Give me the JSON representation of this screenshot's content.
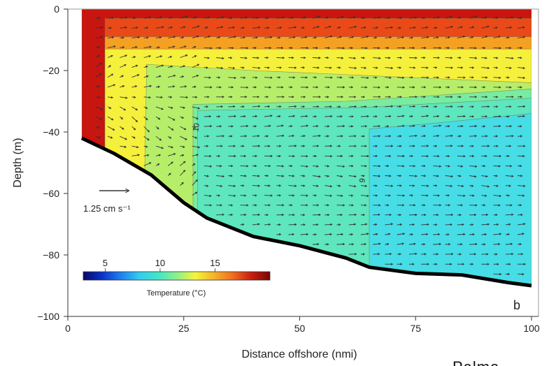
{
  "chart_data": {
    "type": "heatmap",
    "subtype": "cross-section temperature contours with velocity vectors",
    "xlabel": "Distance offshore (nmi)",
    "ylabel": "Depth (m)",
    "xlim": [
      0,
      100
    ],
    "ylim": [
      -100,
      0
    ],
    "x_ticks": [
      0,
      25,
      50,
      75,
      100
    ],
    "y_ticks": [
      0,
      -20,
      -40,
      -60,
      -80,
      -100
    ],
    "x_tick_labels": [
      "0",
      "25",
      "50",
      "75",
      "100"
    ],
    "y_tick_labels": [
      "0",
      "−20",
      "−40",
      "−60",
      "−80",
      "−100"
    ],
    "panel_label": "b",
    "vector_scale_label": "1.25 cm s⁻¹",
    "colorbar": {
      "label": "Temperature (°C)",
      "range": [
        3,
        20
      ],
      "ticks": [
        5,
        10,
        15
      ],
      "tick_labels": [
        "5",
        "10",
        "15"
      ],
      "colors": [
        "#08086b",
        "#0a32c8",
        "#1e7ef0",
        "#33ccf0",
        "#40e6c8",
        "#8cf08c",
        "#f5f53c",
        "#f5b428",
        "#f06e1e",
        "#c81e0f",
        "#7a0505"
      ]
    },
    "contour_labels": [
      "10",
      "9"
    ],
    "bottom_depth": {
      "x": [
        3,
        10,
        18,
        25,
        30,
        40,
        50,
        60,
        65,
        75,
        85,
        95,
        100
      ],
      "y": [
        -42,
        -47,
        -54,
        -63,
        -68,
        -74,
        -77,
        -81,
        -84,
        -86,
        -86.5,
        -89,
        -90
      ]
    },
    "temperature_layers": [
      {
        "temperature": 18.5,
        "color": "#c8150f"
      },
      {
        "temperature": 17.0,
        "color": "#ea4a18"
      },
      {
        "temperature": 15.5,
        "color": "#f4a023"
      },
      {
        "temperature": 14.0,
        "color": "#f5f03c"
      },
      {
        "temperature": 11.5,
        "color": "#b6ee6a"
      },
      {
        "temperature": 10.0,
        "color": "#78eca0"
      },
      {
        "temperature": 9.5,
        "color": "#5ee6be"
      },
      {
        "temperature": 9.0,
        "color": "#46dde6"
      }
    ]
  },
  "credit_text": "Palma,"
}
